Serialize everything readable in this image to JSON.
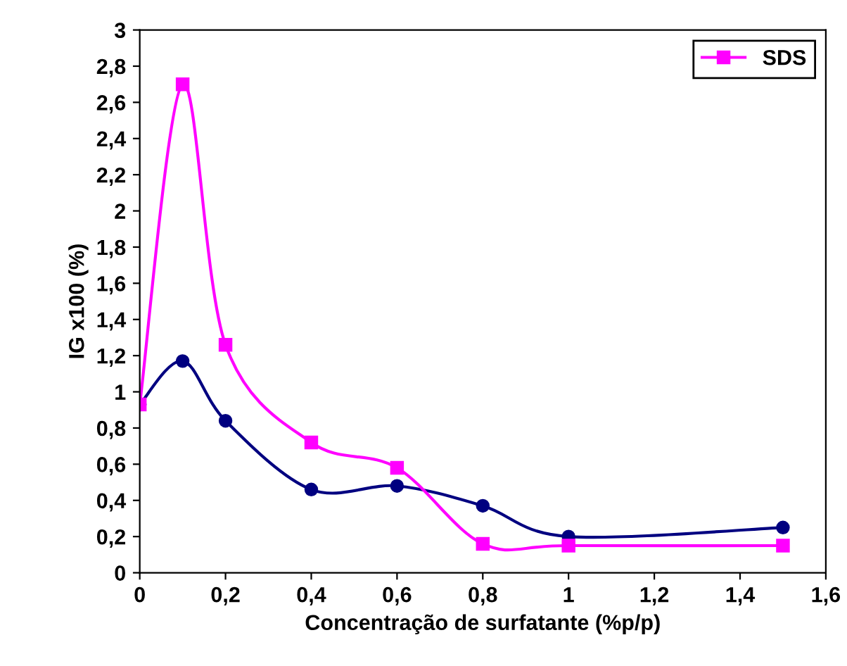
{
  "chart_data": {
    "type": "line",
    "xlabel": "Concentração de surfatante (%p/p)",
    "ylabel": "IG x100 (%)",
    "x": [
      0,
      0.1,
      0.2,
      0.4,
      0.6,
      0.8,
      1.0,
      1.5
    ],
    "series": [
      {
        "color": "#000080",
        "marker": "circle",
        "values": [
          0.93,
          1.17,
          0.84,
          0.46,
          0.48,
          0.37,
          0.2,
          0.25
        ]
      },
      {
        "name": "SDS",
        "color": "#ff00ff",
        "marker": "square",
        "values": [
          0.93,
          2.7,
          1.26,
          0.72,
          0.58,
          0.16,
          0.15,
          0.15
        ]
      }
    ],
    "xlim": [
      0,
      1.6
    ],
    "xticks": [
      0,
      {
        "value": 0.2,
        "label": "0,2"
      },
      {
        "value": 0.4,
        "label": "0,4"
      },
      {
        "value": 0.6,
        "label": "0,6"
      },
      {
        "value": 0.8,
        "label": "0,8"
      },
      1,
      {
        "value": 1.2,
        "label": "1,2"
      },
      {
        "value": 1.4,
        "label": "1,4"
      },
      {
        "value": 1.6,
        "label": "1,6"
      }
    ],
    "ylim": [
      0,
      3
    ],
    "yticks": [
      0,
      {
        "value": 0.2,
        "label": "0,2"
      },
      {
        "value": 0.4,
        "label": "0,4"
      },
      {
        "value": 0.6,
        "label": "0,6"
      },
      {
        "value": 0.8,
        "label": "0,8"
      },
      1,
      {
        "value": 1.2,
        "label": "1,2"
      },
      {
        "value": 1.4,
        "label": "1,4"
      },
      {
        "value": 1.6,
        "label": "1,6"
      },
      {
        "value": 1.8,
        "label": "1,8"
      },
      2,
      {
        "value": 2.2,
        "label": "2,2"
      },
      {
        "value": 2.4,
        "label": "2,4"
      },
      {
        "value": 2.6,
        "label": "2,6"
      },
      {
        "value": 2.8,
        "label": "2,8"
      },
      3
    ],
    "grid": false,
    "legend": "top right",
    "line_style": "solid"
  }
}
